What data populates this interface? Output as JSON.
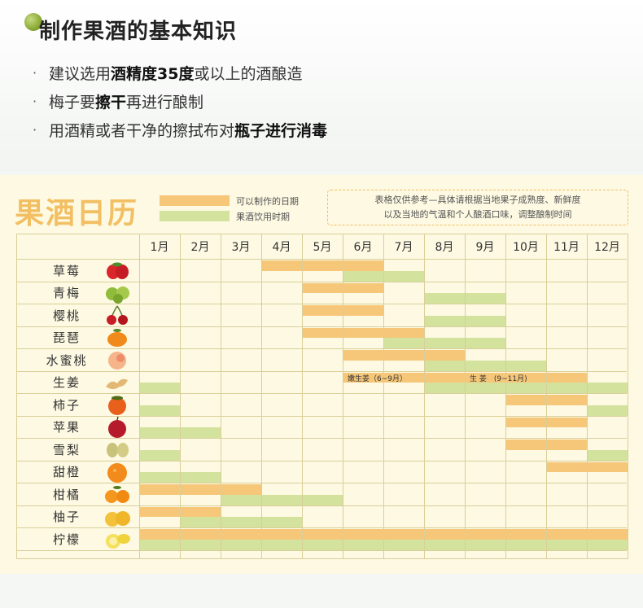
{
  "header": {
    "title": "制作果酒的基本知识",
    "tips": [
      [
        {
          "t": "建议选用"
        },
        {
          "t": "酒精度35度",
          "b": true
        },
        {
          "t": "或以上的酒酿造"
        }
      ],
      [
        {
          "t": "梅子要"
        },
        {
          "t": "擦干",
          "b": true
        },
        {
          "t": "再进行酿制"
        }
      ],
      [
        {
          "t": "用酒精或者干净的擦拭布对"
        },
        {
          "t": "瓶子进行消毒",
          "b": true
        }
      ]
    ],
    "bullet": "·"
  },
  "calendar": {
    "title": "果酒日历",
    "legend": {
      "make": "可以制作的日期",
      "drink": "果酒饮用时期"
    },
    "note_lines": [
      "表格仅供参考—具体请根据当地果子成熟度、新鲜度",
      "以及当地的气温和个人酿酒口味，调整酿制时间"
    ],
    "months": [
      "1月",
      "2月",
      "3月",
      "4月",
      "5月",
      "6月",
      "7月",
      "8月",
      "9月",
      "10月",
      "11月",
      "12月"
    ],
    "colors": {
      "make": "#f6c779",
      "drink": "#d3e29c",
      "grid": "#d9cf9a"
    },
    "fruits": [
      {
        "name": "草莓",
        "icon": "strawberry-icon",
        "make": [
          [
            4,
            6
          ]
        ],
        "drink": [
          [
            6,
            7
          ]
        ]
      },
      {
        "name": "青梅",
        "icon": "green-plum-icon",
        "make": [
          [
            5,
            6
          ]
        ],
        "drink": [
          [
            8,
            9
          ]
        ]
      },
      {
        "name": "樱桃",
        "icon": "cherry-icon",
        "make": [
          [
            5,
            6
          ]
        ],
        "drink": [
          [
            8,
            9
          ]
        ]
      },
      {
        "name": "琵琶",
        "icon": "loquat-icon",
        "make": [
          [
            5,
            7
          ]
        ],
        "drink": [
          [
            7,
            9
          ]
        ]
      },
      {
        "name": "水蜜桃",
        "icon": "peach-icon",
        "make": [
          [
            6,
            8
          ]
        ],
        "drink": [
          [
            8,
            10
          ]
        ]
      },
      {
        "name": "生姜",
        "icon": "ginger-icon",
        "make": [
          [
            6,
            11
          ]
        ],
        "drink": [
          [
            1,
            1
          ],
          [
            8,
            12
          ]
        ],
        "notes": [
          {
            "month": 6,
            "text": "嫩生姜（6~9月）"
          },
          {
            "month": 9,
            "text": "生 姜　(9~11月)"
          }
        ]
      },
      {
        "name": "柿子",
        "icon": "persimmon-icon",
        "make": [
          [
            10,
            11
          ]
        ],
        "drink": [
          [
            1,
            1
          ],
          [
            12,
            12
          ]
        ]
      },
      {
        "name": "苹果",
        "icon": "apple-icon",
        "make": [
          [
            10,
            11
          ]
        ],
        "drink": [
          [
            1,
            2
          ]
        ]
      },
      {
        "name": "雪梨",
        "icon": "pear-icon",
        "make": [
          [
            10,
            11
          ]
        ],
        "drink": [
          [
            1,
            1
          ],
          [
            12,
            12
          ]
        ]
      },
      {
        "name": "甜橙",
        "icon": "orange-icon",
        "make": [
          [
            11,
            12
          ]
        ],
        "drink": [
          [
            1,
            2
          ]
        ]
      },
      {
        "name": "柑橘",
        "icon": "tangerine-icon",
        "make": [
          [
            1,
            3
          ]
        ],
        "drink": [
          [
            3,
            5
          ]
        ]
      },
      {
        "name": "柚子",
        "icon": "pomelo-icon",
        "make": [
          [
            1,
            2
          ]
        ],
        "drink": [
          [
            2,
            4
          ]
        ]
      },
      {
        "name": "柠檬",
        "icon": "lemon-icon",
        "make": [
          [
            1,
            12
          ]
        ],
        "drink": [
          [
            1,
            12
          ]
        ]
      }
    ]
  }
}
